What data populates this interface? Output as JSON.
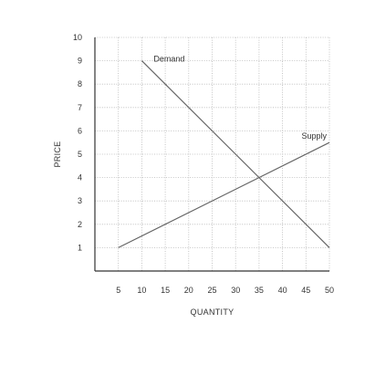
{
  "chart_data": {
    "type": "line",
    "xlabel": "QUANTITY",
    "ylabel": "PRICE",
    "xlim": [
      0,
      50
    ],
    "ylim": [
      0,
      10
    ],
    "x_ticks": [
      5,
      10,
      15,
      20,
      25,
      30,
      35,
      40,
      45,
      50
    ],
    "y_ticks": [
      1,
      2,
      3,
      4,
      5,
      6,
      7,
      8,
      9,
      10
    ],
    "grid": true,
    "grid_style": "dotted",
    "series": [
      {
        "name": "Demand",
        "points": [
          [
            10,
            9
          ],
          [
            50,
            1
          ]
        ]
      },
      {
        "name": "Supply",
        "points": [
          [
            5,
            1
          ],
          [
            50,
            5.5
          ]
        ]
      }
    ],
    "colors": {
      "line": "#666666",
      "grid": "#b5b5b5",
      "axis": "#333333",
      "text": "#333333"
    }
  }
}
